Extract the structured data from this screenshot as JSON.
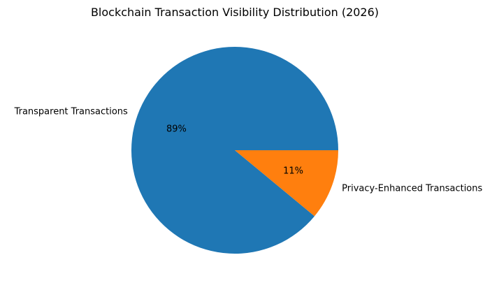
{
  "chart_data": {
    "type": "pie",
    "title": "Blockchain Transaction Visibility Distribution (2026)",
    "slices": [
      {
        "label": "Transparent Transactions",
        "value": 89,
        "pct_label": "89%",
        "color": "#1f77b4"
      },
      {
        "label": "Privacy-Enhanced Transactions",
        "value": 11,
        "pct_label": "11%",
        "color": "#ff7f0e"
      }
    ],
    "start_angle_deg": 0,
    "direction": "counterclockwise",
    "legend": "none"
  }
}
